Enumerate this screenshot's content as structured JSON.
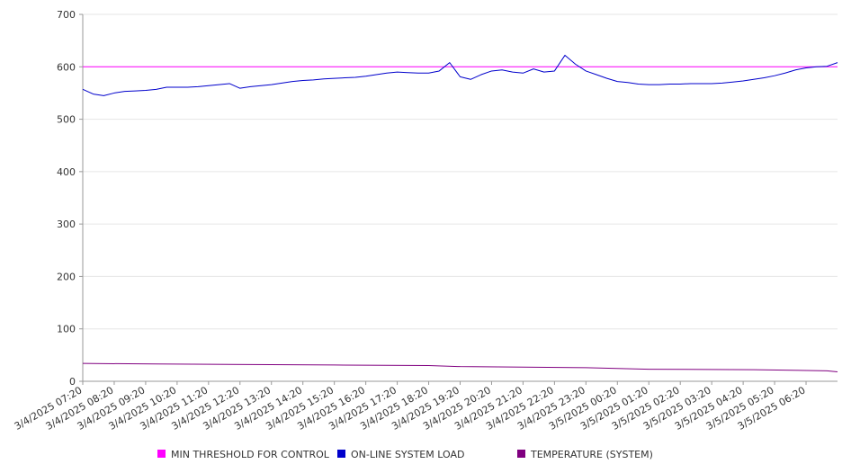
{
  "chart_data": {
    "type": "line",
    "x_ticks": [
      "3/4/2025 07:20",
      "3/4/2025 08:20",
      "3/4/2025 09:20",
      "3/4/2025 10:20",
      "3/4/2025 11:20",
      "3/4/2025 12:20",
      "3/4/2025 13:20",
      "3/4/2025 14:20",
      "3/4/2025 15:20",
      "3/4/2025 16:20",
      "3/4/2025 17:20",
      "3/4/2025 18:20",
      "3/4/2025 19:20",
      "3/4/2025 20:20",
      "3/4/2025 21:20",
      "3/4/2025 22:20",
      "3/4/2025 23:20",
      "3/5/2025 00:20",
      "3/5/2025 01:20",
      "3/5/2025 02:20",
      "3/5/2025 03:20",
      "3/5/2025 04:20",
      "3/5/2025 05:20",
      "3/5/2025 06:20"
    ],
    "x_range": [
      "3/4/2025 07:20",
      "3/5/2025 07:20"
    ],
    "y_ticks": [
      0,
      100,
      200,
      300,
      400,
      500,
      600,
      700
    ],
    "ylim": [
      0,
      700
    ],
    "grid": "horizontal",
    "legend_position": "bottom",
    "series": [
      {
        "name": "MIN THRESHOLD FOR CONTROL",
        "color": "#ff00ff",
        "x": [
          "3/4/2025 07:20",
          "3/5/2025 07:20"
        ],
        "values": [
          600,
          600
        ]
      },
      {
        "name": "ON-LINE SYSTEM LOAD",
        "color": "#0000cc",
        "x": [
          "3/4/2025 07:20",
          "3/4/2025 07:40",
          "3/4/2025 08:00",
          "3/4/2025 08:20",
          "3/4/2025 08:40",
          "3/4/2025 09:00",
          "3/4/2025 09:20",
          "3/4/2025 09:40",
          "3/4/2025 10:00",
          "3/4/2025 10:20",
          "3/4/2025 10:40",
          "3/4/2025 11:00",
          "3/4/2025 11:20",
          "3/4/2025 11:40",
          "3/4/2025 12:00",
          "3/4/2025 12:20",
          "3/4/2025 12:40",
          "3/4/2025 13:00",
          "3/4/2025 13:20",
          "3/4/2025 13:40",
          "3/4/2025 14:00",
          "3/4/2025 14:20",
          "3/4/2025 14:40",
          "3/4/2025 15:00",
          "3/4/2025 15:20",
          "3/4/2025 15:40",
          "3/4/2025 16:00",
          "3/4/2025 16:20",
          "3/4/2025 16:40",
          "3/4/2025 17:00",
          "3/4/2025 17:20",
          "3/4/2025 17:40",
          "3/4/2025 18:00",
          "3/4/2025 18:20",
          "3/4/2025 18:40",
          "3/4/2025 19:00",
          "3/4/2025 19:20",
          "3/4/2025 19:40",
          "3/4/2025 20:00",
          "3/4/2025 20:20",
          "3/4/2025 20:40",
          "3/4/2025 21:00",
          "3/4/2025 21:20",
          "3/4/2025 21:40",
          "3/4/2025 22:00",
          "3/4/2025 22:20",
          "3/4/2025 22:40",
          "3/4/2025 23:00",
          "3/4/2025 23:20",
          "3/4/2025 23:40",
          "3/5/2025 00:00",
          "3/5/2025 00:20",
          "3/5/2025 00:40",
          "3/5/2025 01:00",
          "3/5/2025 01:20",
          "3/5/2025 01:40",
          "3/5/2025 02:00",
          "3/5/2025 02:20",
          "3/5/2025 02:40",
          "3/5/2025 03:00",
          "3/5/2025 03:20",
          "3/5/2025 03:40",
          "3/5/2025 04:00",
          "3/5/2025 04:20",
          "3/5/2025 04:40",
          "3/5/2025 05:00",
          "3/5/2025 05:20",
          "3/5/2025 05:40",
          "3/5/2025 06:00",
          "3/5/2025 06:20",
          "3/5/2025 06:40",
          "3/5/2025 07:00",
          "3/5/2025 07:20"
        ],
        "values": [
          557,
          548,
          545,
          550,
          553,
          554,
          555,
          557,
          561,
          561,
          561,
          562,
          564,
          566,
          568,
          559,
          562,
          564,
          566,
          569,
          572,
          574,
          575,
          577,
          578,
          579,
          580,
          582,
          585,
          588,
          590,
          589,
          588,
          588,
          592,
          608,
          581,
          576,
          585,
          592,
          594,
          590,
          588,
          596,
          590,
          592,
          622,
          605,
          592,
          585,
          578,
          572,
          570,
          567,
          566,
          566,
          567,
          567,
          568,
          568,
          568,
          569,
          571,
          573,
          576,
          579,
          583,
          588,
          594,
          598,
          600,
          601,
          608
        ]
      },
      {
        "name": "TEMPERATURE (SYSTEM)",
        "color": "#800080",
        "x": [
          "3/4/2025 07:20",
          "3/4/2025 09:40",
          "3/4/2025 15:20",
          "3/4/2025 18:20",
          "3/4/2025 19:20",
          "3/4/2025 21:20",
          "3/4/2025 23:20",
          "3/5/2025 01:20",
          "3/5/2025 04:40",
          "3/5/2025 07:00",
          "3/5/2025 07:20"
        ],
        "values": [
          34,
          33,
          31,
          30,
          28,
          27,
          26,
          23,
          22,
          20,
          18
        ]
      }
    ]
  }
}
